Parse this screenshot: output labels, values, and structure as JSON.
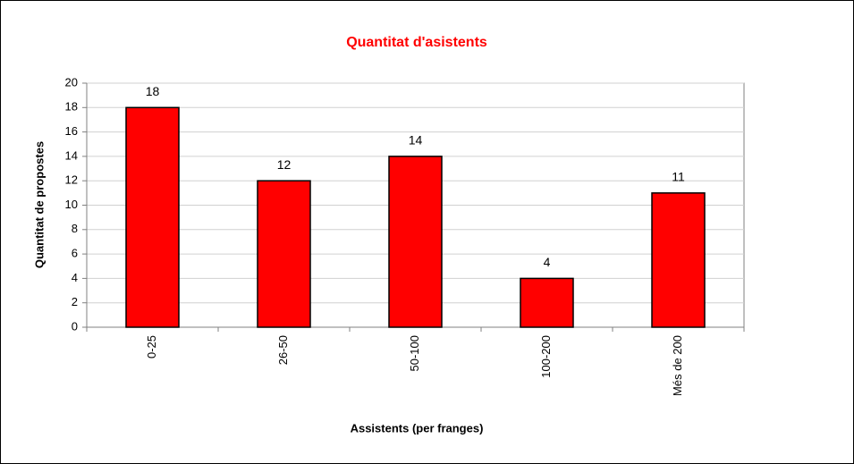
{
  "chart_data": {
    "type": "bar",
    "title": "Quantitat d'asistents",
    "xlabel": "Assistents (per franges)",
    "ylabel": "Quantitat de propostes",
    "categories": [
      "0-25",
      "26-50",
      "50-100",
      "100-200",
      "Més de 200"
    ],
    "values": [
      18,
      12,
      14,
      4,
      11
    ],
    "color": "#ff0000",
    "ylim": [
      0,
      20
    ],
    "yticks": [
      0,
      2,
      4,
      6,
      8,
      10,
      12,
      14,
      16,
      18,
      20
    ],
    "grid": true
  }
}
